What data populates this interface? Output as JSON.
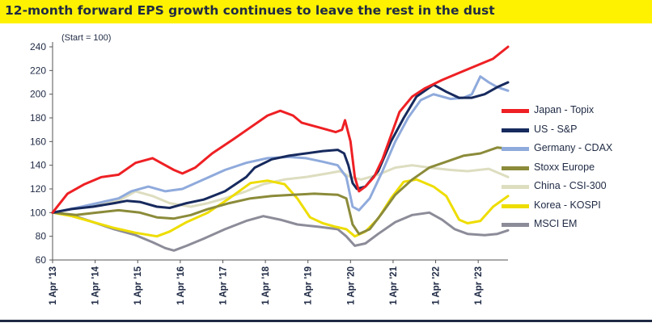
{
  "title": "12-month forward EPS growth continues to leave the rest in the dust",
  "chart_data": {
    "type": "line",
    "annotation": "(Start = 100)",
    "ylim": [
      60,
      240
    ],
    "yticks": [
      60,
      80,
      100,
      120,
      140,
      160,
      180,
      200,
      220,
      240
    ],
    "xlim": [
      2013.25,
      2023.95
    ],
    "xticks": [
      {
        "label": "1 Apr '13",
        "x": 2013.25
      },
      {
        "label": "1 Apr '14",
        "x": 2014.25
      },
      {
        "label": "1 Apr '15",
        "x": 2015.25
      },
      {
        "label": "1 Apr '16",
        "x": 2016.25
      },
      {
        "label": "1 Apr '17",
        "x": 2017.25
      },
      {
        "label": "1 Apr '18",
        "x": 2018.25
      },
      {
        "label": "1 Apr '19",
        "x": 2019.25
      },
      {
        "label": "1 Apr '20",
        "x": 2020.25
      },
      {
        "label": "1 Apr '21",
        "x": 2021.25
      },
      {
        "label": "1 Apr '22",
        "x": 2022.25
      },
      {
        "label": "1 Apr '23",
        "x": 2023.25
      }
    ],
    "grid": false,
    "legend_position": "right",
    "series": [
      {
        "name": "Japan - Topix",
        "color": "#ee2024",
        "points": [
          [
            2013.25,
            100
          ],
          [
            2013.6,
            116
          ],
          [
            2014.0,
            124
          ],
          [
            2014.4,
            130
          ],
          [
            2014.8,
            132
          ],
          [
            2015.2,
            142
          ],
          [
            2015.6,
            146
          ],
          [
            2015.9,
            140
          ],
          [
            2016.1,
            136
          ],
          [
            2016.3,
            133
          ],
          [
            2016.6,
            138
          ],
          [
            2017.0,
            150
          ],
          [
            2017.5,
            162
          ],
          [
            2017.9,
            172
          ],
          [
            2018.3,
            182
          ],
          [
            2018.6,
            186
          ],
          [
            2018.9,
            182
          ],
          [
            2019.1,
            176
          ],
          [
            2019.5,
            172
          ],
          [
            2019.9,
            168
          ],
          [
            2020.05,
            170
          ],
          [
            2020.12,
            178
          ],
          [
            2020.25,
            160
          ],
          [
            2020.35,
            130
          ],
          [
            2020.45,
            118
          ],
          [
            2020.6,
            122
          ],
          [
            2020.8,
            130
          ],
          [
            2021.0,
            145
          ],
          [
            2021.2,
            165
          ],
          [
            2021.4,
            185
          ],
          [
            2021.7,
            198
          ],
          [
            2022.0,
            205
          ],
          [
            2022.4,
            212
          ],
          [
            2022.8,
            218
          ],
          [
            2023.2,
            224
          ],
          [
            2023.6,
            230
          ],
          [
            2023.95,
            240
          ]
        ]
      },
      {
        "name": "US - S&P",
        "color": "#172a5e",
        "points": [
          [
            2013.25,
            100
          ],
          [
            2013.7,
            103
          ],
          [
            2014.2,
            105
          ],
          [
            2014.7,
            108
          ],
          [
            2015.0,
            110
          ],
          [
            2015.3,
            109
          ],
          [
            2015.7,
            105
          ],
          [
            2016.0,
            104
          ],
          [
            2016.4,
            108
          ],
          [
            2016.8,
            111
          ],
          [
            2017.3,
            118
          ],
          [
            2017.8,
            130
          ],
          [
            2018.0,
            138
          ],
          [
            2018.4,
            145
          ],
          [
            2018.8,
            148
          ],
          [
            2019.2,
            150
          ],
          [
            2019.6,
            152
          ],
          [
            2019.95,
            153
          ],
          [
            2020.1,
            150
          ],
          [
            2020.2,
            140
          ],
          [
            2020.3,
            125
          ],
          [
            2020.4,
            120
          ],
          [
            2020.6,
            122
          ],
          [
            2020.9,
            135
          ],
          [
            2021.2,
            160
          ],
          [
            2021.5,
            180
          ],
          [
            2021.8,
            198
          ],
          [
            2022.2,
            208
          ],
          [
            2022.5,
            202
          ],
          [
            2022.8,
            197
          ],
          [
            2023.1,
            197
          ],
          [
            2023.4,
            200
          ],
          [
            2023.7,
            206
          ],
          [
            2023.95,
            210
          ]
        ]
      },
      {
        "name": "Germany - CDAX",
        "color": "#8faadc",
        "points": [
          [
            2013.25,
            100
          ],
          [
            2013.8,
            104
          ],
          [
            2014.3,
            108
          ],
          [
            2014.8,
            112
          ],
          [
            2015.1,
            118
          ],
          [
            2015.5,
            122
          ],
          [
            2015.9,
            118
          ],
          [
            2016.3,
            120
          ],
          [
            2016.8,
            128
          ],
          [
            2017.3,
            136
          ],
          [
            2017.8,
            142
          ],
          [
            2018.3,
            146
          ],
          [
            2018.8,
            147
          ],
          [
            2019.2,
            146
          ],
          [
            2019.6,
            143
          ],
          [
            2019.95,
            140
          ],
          [
            2020.15,
            130
          ],
          [
            2020.3,
            105
          ],
          [
            2020.45,
            102
          ],
          [
            2020.7,
            112
          ],
          [
            2021.0,
            135
          ],
          [
            2021.3,
            160
          ],
          [
            2021.6,
            180
          ],
          [
            2021.9,
            195
          ],
          [
            2022.2,
            200
          ],
          [
            2022.6,
            196
          ],
          [
            2022.9,
            197
          ],
          [
            2023.1,
            200
          ],
          [
            2023.3,
            215
          ],
          [
            2023.5,
            210
          ],
          [
            2023.7,
            206
          ],
          [
            2023.95,
            203
          ]
        ]
      },
      {
        "name": "Stoxx Europe",
        "color": "#8b8b3a",
        "points": [
          [
            2013.25,
            100
          ],
          [
            2013.8,
            98
          ],
          [
            2014.3,
            100
          ],
          [
            2014.8,
            102
          ],
          [
            2015.3,
            100
          ],
          [
            2015.7,
            96
          ],
          [
            2016.1,
            95
          ],
          [
            2016.5,
            98
          ],
          [
            2016.9,
            103
          ],
          [
            2017.4,
            108
          ],
          [
            2017.9,
            112
          ],
          [
            2018.4,
            114
          ],
          [
            2018.9,
            115
          ],
          [
            2019.4,
            116
          ],
          [
            2019.95,
            115
          ],
          [
            2020.15,
            112
          ],
          [
            2020.3,
            90
          ],
          [
            2020.45,
            82
          ],
          [
            2020.7,
            86
          ],
          [
            2021.0,
            100
          ],
          [
            2021.3,
            115
          ],
          [
            2021.7,
            128
          ],
          [
            2022.1,
            138
          ],
          [
            2022.5,
            143
          ],
          [
            2022.9,
            148
          ],
          [
            2023.3,
            150
          ],
          [
            2023.7,
            155
          ],
          [
            2023.95,
            154
          ]
        ]
      },
      {
        "name": "China - CSI-300",
        "color": "#ddddc0",
        "points": [
          [
            2013.25,
            100
          ],
          [
            2013.8,
            104
          ],
          [
            2014.3,
            106
          ],
          [
            2014.8,
            110
          ],
          [
            2015.2,
            118
          ],
          [
            2015.6,
            114
          ],
          [
            2016.0,
            108
          ],
          [
            2016.5,
            105
          ],
          [
            2016.9,
            108
          ],
          [
            2017.3,
            112
          ],
          [
            2017.8,
            118
          ],
          [
            2018.2,
            124
          ],
          [
            2018.7,
            128
          ],
          [
            2019.2,
            130
          ],
          [
            2019.7,
            133
          ],
          [
            2020.0,
            135
          ],
          [
            2020.25,
            130
          ],
          [
            2020.5,
            128
          ],
          [
            2020.9,
            132
          ],
          [
            2021.3,
            138
          ],
          [
            2021.7,
            140
          ],
          [
            2022.1,
            138
          ],
          [
            2022.6,
            136
          ],
          [
            2023.0,
            135
          ],
          [
            2023.5,
            137
          ],
          [
            2023.95,
            130
          ]
        ]
      },
      {
        "name": "Korea - KOSPI",
        "color": "#eedd00",
        "points": [
          [
            2013.25,
            100
          ],
          [
            2013.7,
            97
          ],
          [
            2014.2,
            92
          ],
          [
            2014.7,
            87
          ],
          [
            2015.2,
            83
          ],
          [
            2015.7,
            80
          ],
          [
            2016.0,
            84
          ],
          [
            2016.4,
            92
          ],
          [
            2016.9,
            100
          ],
          [
            2017.4,
            112
          ],
          [
            2017.9,
            125
          ],
          [
            2018.3,
            127
          ],
          [
            2018.7,
            124
          ],
          [
            2019.0,
            112
          ],
          [
            2019.3,
            96
          ],
          [
            2019.6,
            91
          ],
          [
            2019.9,
            88
          ],
          [
            2020.15,
            86
          ],
          [
            2020.35,
            80
          ],
          [
            2020.6,
            84
          ],
          [
            2020.9,
            95
          ],
          [
            2021.2,
            112
          ],
          [
            2021.5,
            126
          ],
          [
            2021.8,
            128
          ],
          [
            2022.2,
            122
          ],
          [
            2022.5,
            114
          ],
          [
            2022.8,
            94
          ],
          [
            2023.0,
            91
          ],
          [
            2023.3,
            93
          ],
          [
            2023.6,
            105
          ],
          [
            2023.95,
            114
          ]
        ]
      },
      {
        "name": "MSCI EM",
        "color": "#8c8c99",
        "points": [
          [
            2013.25,
            100
          ],
          [
            2013.7,
            98
          ],
          [
            2014.2,
            92
          ],
          [
            2014.7,
            86
          ],
          [
            2015.2,
            81
          ],
          [
            2015.6,
            75
          ],
          [
            2015.9,
            70
          ],
          [
            2016.1,
            68
          ],
          [
            2016.4,
            72
          ],
          [
            2016.8,
            78
          ],
          [
            2017.3,
            86
          ],
          [
            2017.8,
            93
          ],
          [
            2018.2,
            97
          ],
          [
            2018.6,
            94
          ],
          [
            2019.0,
            90
          ],
          [
            2019.5,
            88
          ],
          [
            2019.95,
            86
          ],
          [
            2020.15,
            80
          ],
          [
            2020.35,
            72
          ],
          [
            2020.6,
            74
          ],
          [
            2020.9,
            82
          ],
          [
            2021.3,
            92
          ],
          [
            2021.7,
            98
          ],
          [
            2022.1,
            100
          ],
          [
            2022.4,
            94
          ],
          [
            2022.7,
            86
          ],
          [
            2023.0,
            82
          ],
          [
            2023.4,
            81
          ],
          [
            2023.7,
            82
          ],
          [
            2023.95,
            85
          ]
        ]
      }
    ]
  }
}
